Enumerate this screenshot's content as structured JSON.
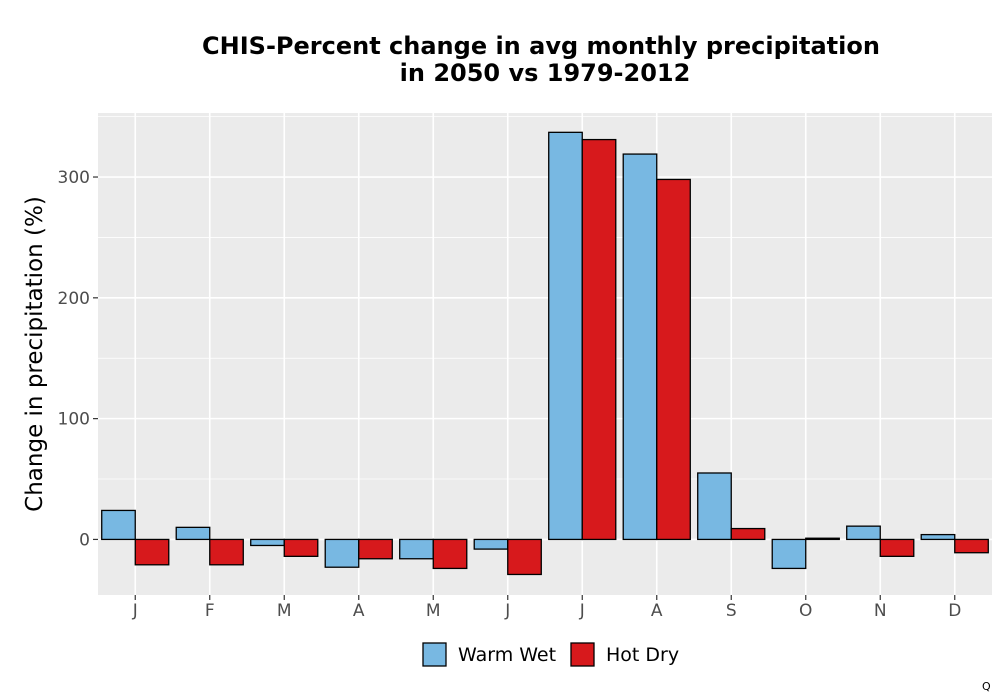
{
  "chart_data": {
    "type": "bar",
    "title_lines": [
      "CHIS-Percent change in avg monthly precipitation",
      "in 2050 vs 1979-2012"
    ],
    "xlabel": "",
    "ylabel": "Change in precipitation (%)",
    "categories": [
      "J",
      "F",
      "M",
      "A",
      "M",
      "J",
      "J",
      "A",
      "S",
      "O",
      "N",
      "D"
    ],
    "series": [
      {
        "name": "Warm Wet",
        "color": "#78b8e2",
        "values": [
          24,
          10,
          -5,
          -23,
          -16,
          -8,
          337,
          319,
          55,
          -24,
          11,
          4
        ]
      },
      {
        "name": "Hot Dry",
        "color": "#d7191c",
        "values": [
          -21,
          -21,
          -14,
          -16,
          -24,
          -29,
          331,
          298,
          9,
          1,
          -14,
          -11
        ]
      }
    ],
    "ylim": [
      -46,
      353
    ],
    "yticks": [
      0,
      100,
      200,
      300
    ],
    "grid": true,
    "panel_background": "#ebebeb",
    "legend_position": "bottom"
  },
  "corner_mark": "Q"
}
